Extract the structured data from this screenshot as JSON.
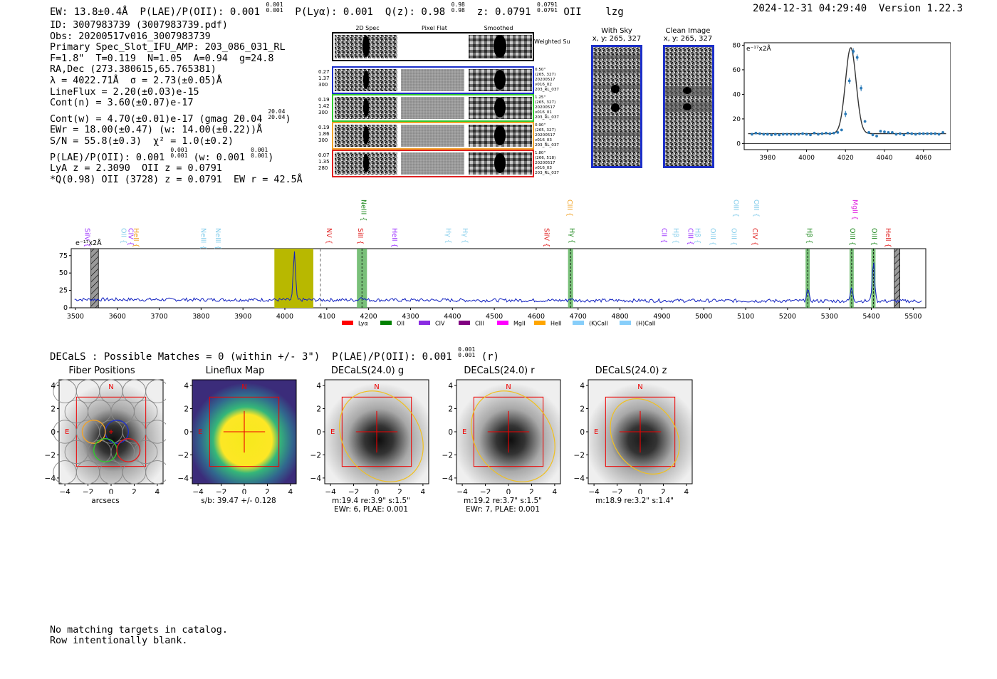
{
  "header": {
    "ew": "EW: 13.8±0.4Å",
    "plae": "P(LAE)/P(OII): 0.001",
    "plae_hi": "0.001",
    "plae_lo": "0.001",
    "plya": "P(Lyα): 0.001",
    "qz": "Q(z): 0.98",
    "qz_hi": "0.98",
    "qz_lo": "0.98",
    "z": "z: 0.0791",
    "z_hi": "0.0791",
    "z_lo": "0.0791",
    "line": "OII",
    "tag": "lzg",
    "timestamp": "2024-12-31 04:29:40",
    "version": "Version 1.22.3"
  },
  "info": {
    "id": "ID: 3007983739 (3007983739.pdf)",
    "obs": "Obs: 20200517v016_3007983739",
    "primary": "Primary Spec_Slot_IFU_AMP: 203_086_031_RL",
    "params": "F=1.8\"  T=0.119  N=1.05  A=0.94  g=24.8",
    "radec": "RA,Dec (273.380615,65.765381)",
    "lambda": "λ = 4022.71Å  σ = 2.73(±0.05)Å",
    "lineflux": "LineFlux = 2.20(±0.03)e-15",
    "contn": "Cont(n) = 3.60(±0.07)e-17",
    "contw": "Cont(w) = 4.70(±0.01)e-17 (gmag 20.04",
    "gmag_hi": "20.04",
    "gmag_lo": "20.04",
    "ewr": "EWr = 18.00(±0.47) (w: 14.00(±0.22))Å",
    "sn": "S/N = 55.8(±0.3)  χ² = 1.0(±0.2)",
    "plae_line": "P(LAE)/P(OII): 0.001",
    "plae_line_hi": "0.001",
    "plae_line_lo": "0.001",
    "plae_w": "(w: 0.001",
    "plae_w_hi": "0.001",
    "plae_w_lo": "0.001",
    "lya": "LyA z = 2.3090  OII z = 0.0791",
    "q": "*Q(0.98) OII (3728) z = 0.0791  EW r = 42.5Å"
  },
  "cutouts": {
    "col_labels": [
      "2D Spec",
      "Pixel Flat",
      "Smoothed"
    ],
    "weighted_sum": "Weighted Sum",
    "rows": [
      {
        "left": [
          "0.27",
          "1.37",
          "300"
        ],
        "right": [
          "0.50\"",
          "(265, 327)",
          "20200517",
          "v016_02",
          "203_RL_037"
        ],
        "color": "#1c2fc8"
      },
      {
        "left": [
          "0.19",
          "1.42",
          "300"
        ],
        "right": [
          "1.25\"",
          "(265, 327)",
          "20200517",
          "v016_01",
          "203_RL_037"
        ],
        "color": "#31c82f"
      },
      {
        "left": [
          "0.19",
          "1.86",
          "300"
        ],
        "right": [
          "0.90\"",
          "(265, 327)",
          "20200517",
          "v016_03",
          "203_RL_037"
        ],
        "color": "#f0a22a"
      },
      {
        "left": [
          "0.07",
          "1.35",
          "280"
        ],
        "right": [
          "1.80\"",
          "(266, 518)",
          "20200517",
          "v016_03",
          "203_RL_037"
        ],
        "color": "#e02020"
      }
    ],
    "with_sky_title": "With Sky",
    "with_sky_xy": "x, y: 265, 327",
    "clean_title": "Clean Image",
    "clean_xy": "x, y: 265, 327"
  },
  "chart_data": [
    {
      "type": "scatter",
      "name": "line-fit",
      "ylabel": "e⁻¹⁷x2Å",
      "xlim": [
        3968,
        4074
      ],
      "ylim": [
        -5,
        82
      ],
      "xticks": [
        3980,
        4000,
        4020,
        4040,
        4060
      ],
      "yticks": [
        0,
        20,
        40,
        60,
        80
      ],
      "x": [
        3972,
        3974,
        3976,
        3978,
        3980,
        3982,
        3984,
        3986,
        3988,
        3990,
        3992,
        3994,
        3996,
        3998,
        4000,
        4002,
        4004,
        4006,
        4008,
        4010,
        4012,
        4014,
        4016,
        4018,
        4020,
        4022,
        4024,
        4026,
        4028,
        4030,
        4032,
        4034,
        4036,
        4038,
        4040,
        4042,
        4044,
        4046,
        4048,
        4050,
        4052,
        4054,
        4056,
        4058,
        4060,
        4062,
        4064,
        4066,
        4068,
        4070
      ],
      "y": [
        7.5,
        8.5,
        8,
        7.5,
        7.5,
        7,
        7.5,
        7,
        7.5,
        7.5,
        7.5,
        7.5,
        7.5,
        8,
        7.5,
        7,
        8.5,
        7.5,
        8,
        8.5,
        8,
        8.5,
        9,
        11,
        24,
        51,
        75,
        70,
        45,
        18,
        9,
        7,
        6,
        10,
        9.5,
        9,
        9,
        7.5,
        8,
        7,
        8.5,
        8,
        7.5,
        8,
        8,
        8,
        8,
        8,
        7.5,
        9
      ],
      "fit_center": 4022.7,
      "fit_sigma": 2.73,
      "fit_amplitude": 70,
      "fit_baseline": 8
    },
    {
      "type": "line",
      "name": "full-spectrum",
      "ylabel": "e⁻¹⁷x2Å",
      "xlim": [
        3490,
        5530
      ],
      "ylim": [
        0,
        85
      ],
      "xticks": [
        3500,
        3600,
        3700,
        3800,
        3900,
        4000,
        4100,
        4200,
        4300,
        4400,
        4500,
        4600,
        4700,
        4800,
        4900,
        5000,
        5100,
        5200,
        5300,
        5400,
        5500
      ],
      "yticks": [
        0,
        25,
        50,
        75
      ],
      "baseline": 12,
      "emission_peaks": [
        {
          "x": 4022.7,
          "peak": 80,
          "sigma": 2.7
        },
        {
          "x": 4184,
          "peak": 17,
          "sigma": 4
        },
        {
          "x": 4682,
          "peak": 15,
          "sigma": 3
        },
        {
          "x": 5248,
          "peak": 28,
          "sigma": 3
        },
        {
          "x": 5353,
          "peak": 30,
          "sigma": 3
        },
        {
          "x": 5405,
          "peak": 68,
          "sigma": 3
        }
      ],
      "highlight_band": [
        3975,
        4068
      ],
      "dashed_markers": [
        4085
      ],
      "green_bands": [
        {
          "center": 4184,
          "width": 24
        },
        {
          "center": 4682,
          "width": 12
        },
        {
          "center": 5248,
          "width": 10
        },
        {
          "center": 5353,
          "width": 10
        },
        {
          "center": 5405,
          "width": 10
        }
      ],
      "hatched_bands": [
        {
          "from": 3537,
          "to": 3555
        },
        {
          "from": 5455,
          "to": 5468
        }
      ],
      "line_labels": [
        {
          "text": "SiIV",
          "x": 3528,
          "color": "#9b30ff",
          "row": "low"
        },
        {
          "text": "OII",
          "x": 3615,
          "color": "#87ceeb",
          "row": "low"
        },
        {
          "text": "CIV",
          "x": 3632,
          "color": "#9b30ff",
          "row": "low"
        },
        {
          "text": "HeII",
          "x": 3645,
          "color": "#f0a020",
          "row": "low"
        },
        {
          "text": "NeIII",
          "x": 3805,
          "color": "#87ceeb",
          "row": "low"
        },
        {
          "text": "NeIII",
          "x": 3840,
          "color": "#87ceeb",
          "row": "low"
        },
        {
          "text": "NV",
          "x": 4105,
          "color": "#e02020",
          "row": "low"
        },
        {
          "text": "SiII",
          "x": 4180,
          "color": "#e02020",
          "row": "low"
        },
        {
          "text": "HeII",
          "x": 4262,
          "color": "#9b30ff",
          "row": "low"
        },
        {
          "text": "NeIII",
          "x": 4188,
          "color": "#228b22",
          "row": "high"
        },
        {
          "text": "Hγ",
          "x": 4390,
          "color": "#87ceeb",
          "row": "low"
        },
        {
          "text": "Hγ",
          "x": 4430,
          "color": "#87ceeb",
          "row": "low"
        },
        {
          "text": "SiIV",
          "x": 4625,
          "color": "#e02020",
          "row": "low"
        },
        {
          "text": "CIII",
          "x": 4680,
          "color": "#f0a020",
          "row": "high"
        },
        {
          "text": "Hγ",
          "x": 4685,
          "color": "#228b22",
          "row": "low"
        },
        {
          "text": "CII",
          "x": 4905,
          "color": "#9b30ff",
          "row": "low"
        },
        {
          "text": "Hβ",
          "x": 4933,
          "color": "#87ceeb",
          "row": "low"
        },
        {
          "text": "CIII",
          "x": 4968,
          "color": "#9b30ff",
          "row": "low"
        },
        {
          "text": "Hβ",
          "x": 4985,
          "color": "#87ceeb",
          "row": "low"
        },
        {
          "text": "OIII",
          "x": 5022,
          "color": "#87ceeb",
          "row": "low"
        },
        {
          "text": "OIII",
          "x": 5072,
          "color": "#87ceeb",
          "row": "low"
        },
        {
          "text": "CIV",
          "x": 5122,
          "color": "#e02020",
          "row": "low"
        },
        {
          "text": "OIII",
          "x": 5077,
          "color": "#87ceeb",
          "row": "high"
        },
        {
          "text": "OIII",
          "x": 5125,
          "color": "#87ceeb",
          "row": "high"
        },
        {
          "text": "Hβ",
          "x": 5252,
          "color": "#228b22",
          "row": "low"
        },
        {
          "text": "OIII",
          "x": 5355,
          "color": "#228b22",
          "row": "low"
        },
        {
          "text": "MgII",
          "x": 5361,
          "color": "#e020e0",
          "row": "high"
        },
        {
          "text": "OIII",
          "x": 5407,
          "color": "#228b22",
          "row": "low"
        },
        {
          "text": "HeII",
          "x": 5440,
          "color": "#e02020",
          "row": "low"
        }
      ],
      "legend": [
        {
          "label": "Lyα",
          "color": "#ff0000"
        },
        {
          "label": "OII",
          "color": "#008000"
        },
        {
          "label": "CIV",
          "color": "#8a2be2"
        },
        {
          "label": "CIII",
          "color": "#800080"
        },
        {
          "label": "MgII",
          "color": "#ff00ff"
        },
        {
          "label": "HeII",
          "color": "#ffa500"
        },
        {
          "label": "(K)CaII",
          "color": "#87cefa"
        },
        {
          "label": "(H)CaII",
          "color": "#87cefa"
        }
      ]
    }
  ],
  "decals": {
    "headline": "DECaLS : Possible Matches = 0 (within +/- 3\")  P(LAE)/P(OII): 0.001",
    "plae_hi": "0.001",
    "plae_lo": "0.001",
    "band": "(r)",
    "panels": [
      {
        "title": "Fiber Positions",
        "caption": [
          "arcsecs"
        ]
      },
      {
        "title": "Lineflux Map",
        "caption": [
          "s/b: 39.47 +/- 0.128"
        ]
      },
      {
        "title": "DECaLS(24.0) g",
        "caption": [
          "m:19.4  re:3.9\"  s:1.5\"",
          "EWr: 6, PLAE: 0.001"
        ]
      },
      {
        "title": "DECaLS(24.0) r",
        "caption": [
          "m:19.2  re:3.7\"  s:1.5\"",
          "EWr: 7, PLAE: 0.001"
        ]
      },
      {
        "title": "DECaLS(24.0) z",
        "caption": [
          "m:18.9  re:3.2\"  s:1.4\""
        ]
      }
    ],
    "axis_ticks": [
      "4",
      "2",
      "0",
      "−2",
      "−4"
    ],
    "axis_xticks": [
      "−4",
      "−2",
      "0",
      "2",
      "4"
    ],
    "compass_n": "N",
    "compass_e": "E"
  },
  "footer": {
    "line1": "No matching targets in catalog.",
    "line2": "Row intentionally blank."
  }
}
